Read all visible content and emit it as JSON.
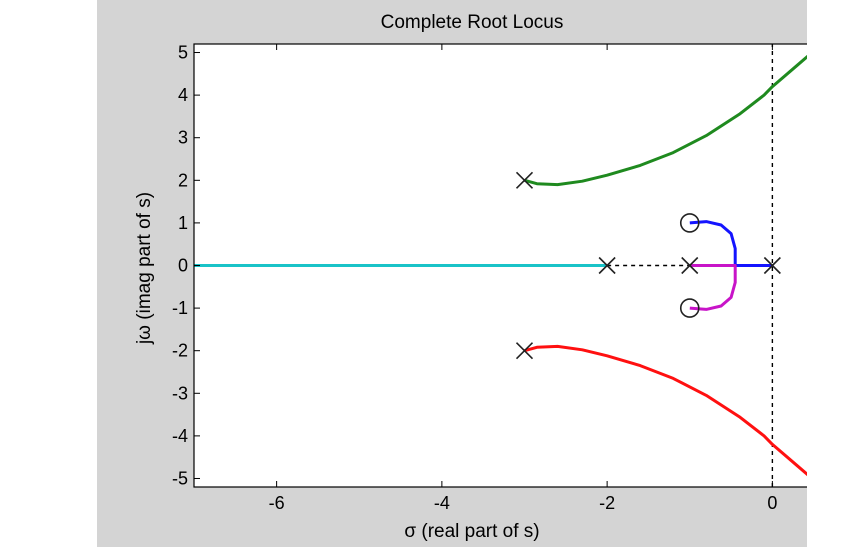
{
  "chart_data": {
    "type": "line",
    "title": "Complete Root Locus",
    "xlabel": "σ (real part of s)",
    "ylabel": "jω (imag part of s)",
    "xlim": [
      -7,
      1
    ],
    "ylim": [
      -5.2,
      5.2
    ],
    "xticks": [
      -6,
      -4,
      -2,
      0
    ],
    "yticks": [
      5,
      4,
      3,
      2,
      1,
      0,
      -1,
      -2,
      -3,
      -4,
      -5
    ],
    "grid": false,
    "colors": {
      "upper_branch": "#1f8a1f",
      "lower_branch": "#ff1010",
      "real_axis_branch": "#19c3c8",
      "blue_branch": "#1414ff",
      "magenta_branch": "#c814c8"
    },
    "poles": [
      {
        "x": -3,
        "y": 2
      },
      {
        "x": -3,
        "y": -2
      },
      {
        "x": -2,
        "y": 0
      },
      {
        "x": -1,
        "y": 0
      },
      {
        "x": 0,
        "y": 0
      }
    ],
    "zeros": [
      {
        "x": -1,
        "y": 1
      },
      {
        "x": -1,
        "y": -1
      }
    ],
    "series": [
      {
        "color_key": "upper_branch",
        "x": [
          -3,
          -2.85,
          -2.6,
          -2.3,
          -2.0,
          -1.6,
          -1.2,
          -0.8,
          -0.4,
          -0.1,
          0.0,
          0.3,
          0.6
        ],
        "y": [
          2,
          1.92,
          1.9,
          1.98,
          2.12,
          2.35,
          2.65,
          3.05,
          3.55,
          4.0,
          4.2,
          4.7,
          5.2
        ]
      },
      {
        "color_key": "lower_branch",
        "x": [
          -3,
          -2.85,
          -2.6,
          -2.3,
          -2.0,
          -1.6,
          -1.2,
          -0.8,
          -0.4,
          -0.1,
          0.0,
          0.3,
          0.6
        ],
        "y": [
          -2,
          -1.92,
          -1.9,
          -1.98,
          -2.12,
          -2.35,
          -2.65,
          -3.05,
          -3.55,
          -4.0,
          -4.2,
          -4.7,
          -5.2
        ]
      },
      {
        "color_key": "real_axis_branch",
        "x": [
          -7,
          -2
        ],
        "y": [
          0,
          0
        ]
      },
      {
        "color_key": "blue_branch",
        "x": [
          0,
          -0.45,
          -0.45,
          -0.5,
          -0.62,
          -0.8,
          -1.0
        ],
        "y": [
          0,
          0,
          0.4,
          0.75,
          0.95,
          1.03,
          1.0
        ]
      },
      {
        "color_key": "magenta_branch",
        "x": [
          -1,
          -0.45,
          -0.45,
          -0.5,
          -0.62,
          -0.8,
          -1.0
        ],
        "y": [
          0,
          0,
          -0.4,
          -0.75,
          -0.95,
          -1.03,
          -1.0
        ]
      }
    ],
    "dashed_segments": [
      {
        "x": [
          -2,
          0
        ],
        "y": [
          0,
          0
        ]
      },
      {
        "x": [
          0,
          0
        ],
        "y": [
          -5.2,
          5.2
        ]
      }
    ]
  }
}
